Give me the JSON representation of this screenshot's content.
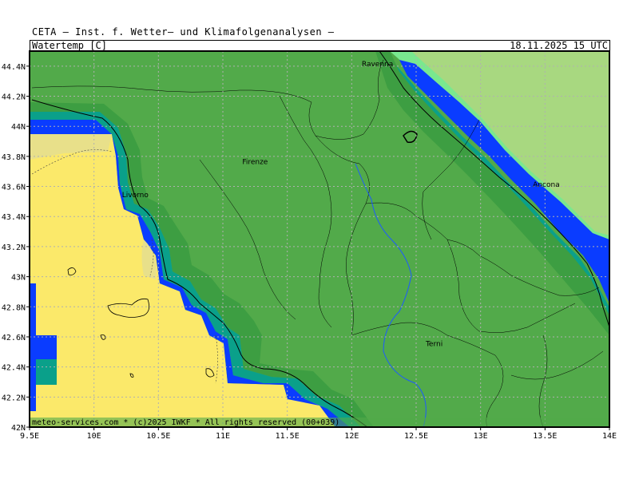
{
  "header": {
    "title": "CETA — Inst. f. Wetter— und Klimafolgenanalysen —",
    "variable": "Watertemp [C]",
    "datetime": "18.11.2025 15 UTC"
  },
  "footer": {
    "credit": "meteo-services.com * (c)2025 IWKF * All rights reserved (00+039)"
  },
  "axes": {
    "lon_min": 9.5,
    "lon_max": 14.0,
    "lat_min": 42.0,
    "lat_max": 44.5,
    "x_ticks": [
      "9.5E",
      "10E",
      "10.5E",
      "11E",
      "11.5E",
      "12E",
      "12.5E",
      "13E",
      "13.5E",
      "14E"
    ],
    "y_ticks": [
      "42N",
      "42.2N",
      "42.4N",
      "42.6N",
      "42.8N",
      "43N",
      "43.2N",
      "43.4N",
      "43.6N",
      "43.8N",
      "44N",
      "44.2N",
      "44.4N"
    ]
  },
  "cities": [
    {
      "name": "Ravenna",
      "lon": 12.2,
      "lat": 44.42
    },
    {
      "name": "Firenze",
      "lon": 11.25,
      "lat": 43.77
    },
    {
      "name": "Livorno",
      "lon": 10.32,
      "lat": 43.55
    },
    {
      "name": "Ancona",
      "lon": 13.51,
      "lat": 43.62
    },
    {
      "name": "Terni",
      "lon": 12.64,
      "lat": 42.56
    }
  ],
  "colors": {
    "land": "#52aa4a",
    "sea_warm": "#fbe96a",
    "sea_adriatic": "#a8d880",
    "band_light": "#79e88f",
    "band_dark": "#3d9e42",
    "band_teal": "#0aa08a",
    "band_blue": "#0a3cff",
    "grid": "#b0b0b0"
  }
}
